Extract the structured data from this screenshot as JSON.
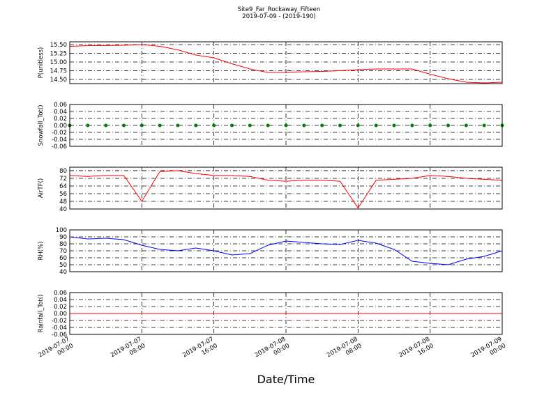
{
  "chart_data": [
    {
      "type": "line",
      "title": "Site9_Far_Rockaway_Fifteen",
      "subtitle": "2019-07-09 - (2019-190)",
      "ylabel": "P(unitless)",
      "x": [
        "2019-07-07 00:00",
        "2019-07-07 02:00",
        "2019-07-07 04:00",
        "2019-07-07 06:00",
        "2019-07-07 08:00",
        "2019-07-07 10:00",
        "2019-07-07 12:00",
        "2019-07-07 14:00",
        "2019-07-07 16:00",
        "2019-07-07 18:00",
        "2019-07-07 20:00",
        "2019-07-07 22:00",
        "2019-07-08 00:00",
        "2019-07-08 02:00",
        "2019-07-08 04:00",
        "2019-07-08 06:00",
        "2019-07-08 08:00",
        "2019-07-08 10:00",
        "2019-07-08 12:00",
        "2019-07-08 14:00",
        "2019-07-08 16:00",
        "2019-07-08 18:00",
        "2019-07-08 20:00",
        "2019-07-08 22:00",
        "2019-07-09 00:00"
      ],
      "color": "#ff0000",
      "values": [
        15.45,
        15.47,
        15.47,
        15.48,
        15.5,
        15.45,
        15.35,
        15.2,
        15.12,
        14.95,
        14.8,
        14.7,
        14.7,
        14.72,
        14.73,
        14.75,
        14.78,
        14.8,
        14.8,
        14.8,
        14.65,
        14.52,
        14.42,
        14.4,
        14.42
      ],
      "ylim": [
        14.38,
        15.58
      ],
      "yticks": [
        {
          "value": 14.5,
          "label": "14.50"
        },
        14.75,
        {
          "value": 15,
          "label": "15.00"
        },
        15.25,
        {
          "value": 15.5,
          "label": "15.50"
        }
      ],
      "grid": true
    },
    {
      "type": "scatter",
      "ylabel": "Snowfall_Tot()",
      "x": [
        "2019-07-07 00:00",
        "2019-07-07 02:00",
        "2019-07-07 04:00",
        "2019-07-07 06:00",
        "2019-07-07 08:00",
        "2019-07-07 10:00",
        "2019-07-07 12:00",
        "2019-07-07 14:00",
        "2019-07-07 16:00",
        "2019-07-07 18:00",
        "2019-07-07 20:00",
        "2019-07-07 22:00",
        "2019-07-08 00:00",
        "2019-07-08 02:00",
        "2019-07-08 04:00",
        "2019-07-08 06:00",
        "2019-07-08 08:00",
        "2019-07-08 10:00",
        "2019-07-08 12:00",
        "2019-07-08 14:00",
        "2019-07-08 16:00",
        "2019-07-08 18:00",
        "2019-07-08 20:00",
        "2019-07-08 22:00",
        "2019-07-09 00:00"
      ],
      "color": "#008000",
      "values": [
        0,
        0,
        0,
        0,
        0,
        0,
        0,
        0,
        0,
        0,
        0,
        0,
        0,
        0,
        0,
        0,
        0,
        0,
        0,
        0,
        0,
        0,
        0,
        0,
        0
      ],
      "ylim": [
        -0.06,
        0.06
      ],
      "yticks": [
        -0.06,
        -0.04,
        -0.02,
        {
          "value": 0,
          "label": "0.00"
        },
        0.02,
        0.04,
        0.06
      ],
      "grid": true
    },
    {
      "type": "line",
      "ylabel": "AirTF()",
      "x": [
        "2019-07-07 00:00",
        "2019-07-07 02:00",
        "2019-07-07 04:00",
        "2019-07-07 06:00",
        "2019-07-07 08:00",
        "2019-07-07 10:00",
        "2019-07-07 12:00",
        "2019-07-07 14:00",
        "2019-07-07 16:00",
        "2019-07-07 18:00",
        "2019-07-07 20:00",
        "2019-07-07 22:00",
        "2019-07-08 00:00",
        "2019-07-08 02:00",
        "2019-07-08 04:00",
        "2019-07-08 06:00",
        "2019-07-08 08:00",
        "2019-07-08 10:00",
        "2019-07-08 12:00",
        "2019-07-08 14:00",
        "2019-07-08 16:00",
        "2019-07-08 18:00",
        "2019-07-08 20:00",
        "2019-07-08 22:00",
        "2019-07-09 00:00"
      ],
      "color": "#ff0000",
      "values": [
        75,
        74,
        75,
        75,
        48,
        79,
        80,
        77,
        75,
        75,
        74,
        70,
        69,
        70,
        70,
        69,
        41,
        70,
        71,
        72,
        75,
        74,
        72,
        71,
        70
      ],
      "ylim": [
        40,
        83.6
      ],
      "yticks": [
        40,
        48,
        56,
        64,
        72,
        80
      ],
      "grid": true
    },
    {
      "type": "line",
      "ylabel": "RH(%)",
      "x": [
        "2019-07-07 00:00",
        "2019-07-07 02:00",
        "2019-07-07 04:00",
        "2019-07-07 06:00",
        "2019-07-07 08:00",
        "2019-07-07 10:00",
        "2019-07-07 12:00",
        "2019-07-07 14:00",
        "2019-07-07 16:00",
        "2019-07-07 18:00",
        "2019-07-07 20:00",
        "2019-07-07 22:00",
        "2019-07-08 00:00",
        "2019-07-08 02:00",
        "2019-07-08 04:00",
        "2019-07-08 06:00",
        "2019-07-08 08:00",
        "2019-07-08 10:00",
        "2019-07-08 12:00",
        "2019-07-08 14:00",
        "2019-07-08 16:00",
        "2019-07-08 18:00",
        "2019-07-08 20:00",
        "2019-07-08 22:00",
        "2019-07-09 00:00"
      ],
      "color": "#0000ff",
      "values": [
        90,
        87,
        88,
        86,
        78,
        72,
        70,
        74,
        70,
        64,
        66,
        78,
        84,
        82,
        80,
        79,
        85,
        81,
        72,
        55,
        52,
        50,
        58,
        62,
        70
      ],
      "ylim": [
        40,
        100
      ],
      "yticks": [
        40,
        50,
        60,
        70,
        80,
        90,
        100
      ],
      "grid": true
    },
    {
      "type": "line",
      "ylabel": "Rainfall_Tot()",
      "xlabel": "Date/Time",
      "x": [
        "2019-07-07 00:00",
        "2019-07-07 02:00",
        "2019-07-07 04:00",
        "2019-07-07 06:00",
        "2019-07-07 08:00",
        "2019-07-07 10:00",
        "2019-07-07 12:00",
        "2019-07-07 14:00",
        "2019-07-07 16:00",
        "2019-07-07 18:00",
        "2019-07-07 20:00",
        "2019-07-07 22:00",
        "2019-07-08 00:00",
        "2019-07-08 02:00",
        "2019-07-08 04:00",
        "2019-07-08 06:00",
        "2019-07-08 08:00",
        "2019-07-08 10:00",
        "2019-07-08 12:00",
        "2019-07-08 14:00",
        "2019-07-08 16:00",
        "2019-07-08 18:00",
        "2019-07-08 20:00",
        "2019-07-08 22:00",
        "2019-07-09 00:00"
      ],
      "color": "#ff0000",
      "values": [
        0,
        0,
        0,
        0,
        0,
        0,
        0,
        0,
        0,
        0,
        0,
        0,
        0,
        0,
        0,
        0,
        0,
        0,
        0,
        0,
        0,
        0,
        0,
        0,
        0
      ],
      "ylim": [
        -0.06,
        0.06
      ],
      "yticks": [
        -0.06,
        -0.04,
        -0.02,
        {
          "value": 0,
          "label": "0.00"
        },
        0.02,
        0.04,
        0.06
      ],
      "xticks": [
        "2019-07-07 00:00",
        "2019-07-07 08:00",
        "2019-07-07 16:00",
        "2019-07-08 00:00",
        "2019-07-08 08:00",
        "2019-07-08 16:00",
        "2019-07-09 00:00"
      ],
      "grid": true
    }
  ]
}
